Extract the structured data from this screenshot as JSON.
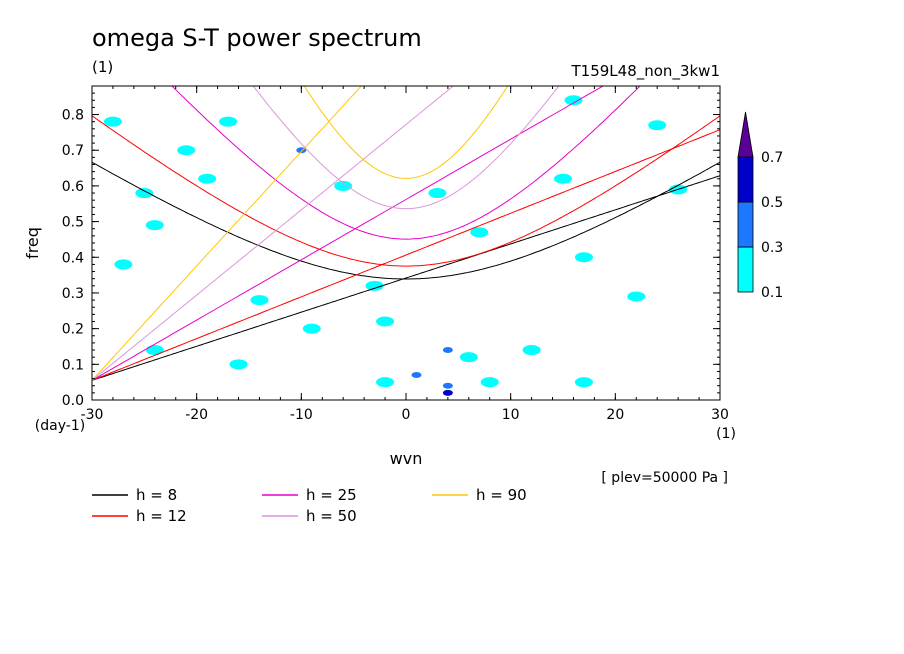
{
  "chart_data": {
    "type": "contour",
    "title": "omega S-T power spectrum",
    "subtitle_left": "(1)",
    "subtitle_right": "T159L48_non_3kw1",
    "xlabel": "wvn",
    "ylabel": "freq",
    "x_unit": "(1)",
    "y_unit": "(day-1)",
    "xlim": [
      -30,
      30
    ],
    "ylim": [
      0,
      0.88
    ],
    "x_ticks": [
      -30,
      -20,
      -10,
      0,
      10,
      20,
      30
    ],
    "x_tick_labels": [
      "-30",
      "-20",
      "-10",
      "0",
      "10",
      "20",
      "30"
    ],
    "y_ticks": [
      0.0,
      0.1,
      0.2,
      0.3,
      0.4,
      0.5,
      0.6,
      0.7,
      0.8
    ],
    "y_tick_labels": [
      "0.0",
      "0.1",
      "0.2",
      "0.3",
      "0.4",
      "0.5",
      "0.6",
      "0.7",
      "0.8"
    ],
    "annotation": "[ plev=50000 Pa ]",
    "colorbar": {
      "levels": [
        "0.1",
        "0.3",
        "0.5",
        "0.7"
      ],
      "colors": [
        "#00ffff",
        "#1e78ff",
        "#0000c8",
        "#5a0096"
      ]
    },
    "shaded_patches": [
      {
        "x": -28,
        "y": 0.78,
        "level": 0
      },
      {
        "x": -25,
        "y": 0.58,
        "level": 0
      },
      {
        "x": -21,
        "y": 0.7,
        "level": 0
      },
      {
        "x": -24,
        "y": 0.49,
        "level": 0
      },
      {
        "x": -27,
        "y": 0.38,
        "level": 0
      },
      {
        "x": -17,
        "y": 0.78,
        "level": 0
      },
      {
        "x": -10,
        "y": 0.7,
        "level": 1
      },
      {
        "x": -6,
        "y": 0.6,
        "level": 0
      },
      {
        "x": -14,
        "y": 0.28,
        "level": 0
      },
      {
        "x": -3,
        "y": 0.32,
        "level": 0
      },
      {
        "x": 3,
        "y": 0.58,
        "level": 0
      },
      {
        "x": 7,
        "y": 0.47,
        "level": 0
      },
      {
        "x": 16,
        "y": 0.84,
        "level": 0
      },
      {
        "x": 26,
        "y": 0.59,
        "level": 0
      },
      {
        "x": 22,
        "y": 0.29,
        "level": 0
      },
      {
        "x": 17,
        "y": 0.4,
        "level": 0
      },
      {
        "x": 12,
        "y": 0.14,
        "level": 0
      },
      {
        "x": -16,
        "y": 0.1,
        "level": 0
      },
      {
        "x": -2,
        "y": 0.05,
        "level": 0
      },
      {
        "x": 1,
        "y": 0.07,
        "level": 1
      },
      {
        "x": 4,
        "y": 0.04,
        "level": 1
      },
      {
        "x": 4,
        "y": 0.02,
        "level": 2
      },
      {
        "x": 6,
        "y": 0.12,
        "level": 0
      },
      {
        "x": 8,
        "y": 0.05,
        "level": 0
      },
      {
        "x": 4,
        "y": 0.14,
        "level": 1
      },
      {
        "x": 17,
        "y": 0.05,
        "level": 0
      },
      {
        "x": -24,
        "y": 0.14,
        "level": 0
      },
      {
        "x": -9,
        "y": 0.2,
        "level": 0
      },
      {
        "x": 24,
        "y": 0.77,
        "level": 0
      },
      {
        "x": 15,
        "y": 0.62,
        "level": 0
      },
      {
        "x": -19,
        "y": 0.62,
        "level": 0
      },
      {
        "x": -2,
        "y": 0.22,
        "level": 0
      }
    ],
    "series": [
      {
        "name": "h =  8",
        "h": 8,
        "color": "#000000",
        "width": 1.0
      },
      {
        "name": "h = 12",
        "h": 12,
        "color": "#ff0000",
        "width": 1.0
      },
      {
        "name": "h = 25",
        "h": 25,
        "color": "#e600c8",
        "width": 1.0
      },
      {
        "name": "h = 50",
        "h": 50,
        "color": "#dc96dc",
        "width": 1.0
      },
      {
        "name": "h = 90",
        "h": 90,
        "color": "#ffc800",
        "width": 1.0
      }
    ]
  }
}
